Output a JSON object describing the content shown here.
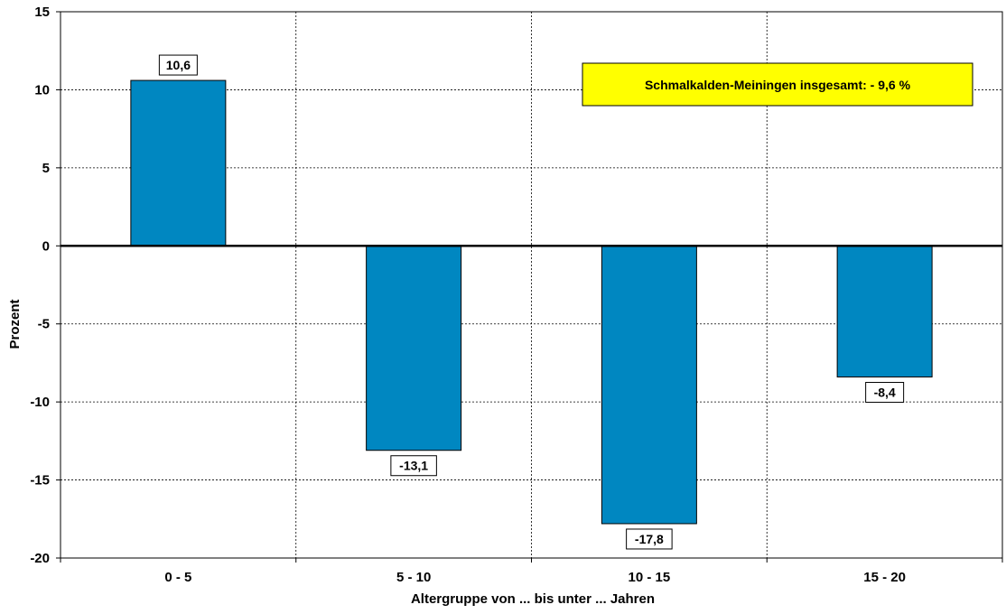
{
  "chart_data": {
    "type": "bar",
    "categories": [
      "0 - 5",
      "5 - 10",
      "10 - 15",
      "15 - 20"
    ],
    "values": [
      10.6,
      -13.1,
      -17.8,
      -8.4
    ],
    "value_labels": [
      "10,6",
      "-13,1",
      "-17,8",
      "-8,4"
    ],
    "title": "",
    "xlabel": "Altergruppe von ... bis unter ... Jahren",
    "ylabel": "Prozent",
    "ylim": [
      -20,
      15
    ],
    "yticks": [
      15,
      10,
      5,
      0,
      -5,
      -10,
      -15,
      -20
    ],
    "grid": true,
    "legend": "none",
    "bar_color": "#0087C1",
    "annotation": {
      "text": "Schmalkalden-Meiningen insgesamt: - 9,6 %",
      "background": "#FFFF00"
    }
  }
}
